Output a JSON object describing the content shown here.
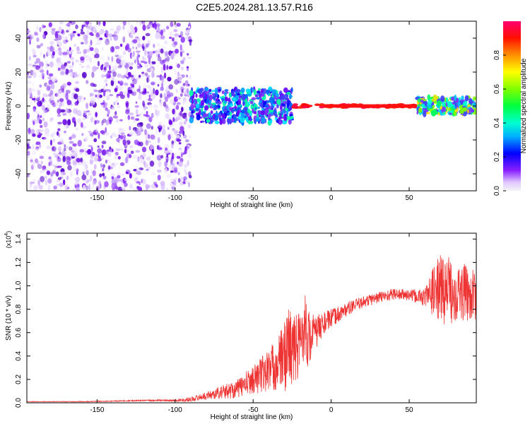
{
  "figure_title": "C2E5.2024.281.13.57.R16",
  "chart_data": [
    {
      "type": "heatmap",
      "title": "",
      "xlabel": "Height of straight line (km)",
      "ylabel": "Frequency (Hz)",
      "xlim": [
        -195,
        93
      ],
      "ylim": [
        -50,
        50
      ],
      "xticks": [
        -150,
        -100,
        -50,
        0,
        50
      ],
      "yticks": [
        -40,
        -20,
        0,
        20,
        40
      ],
      "grid": false,
      "colorbar": {
        "label": "Normalized spectral amplitude",
        "range": [
          0,
          1
        ],
        "ticks": [
          0.0,
          0.2,
          0.4,
          0.6,
          0.8
        ],
        "colors": [
          "#f2f2f2",
          "#e0c8ff",
          "#7a00ff",
          "#0000ff",
          "#00c8ff",
          "#00ff80",
          "#80ff00",
          "#ffff00",
          "#ff8000",
          "#ff0000",
          "#ff0078"
        ]
      },
      "regions": [
        {
          "x": [
            -195,
            -90
          ],
          "freq_band": [
            -50,
            50
          ],
          "amplitude": 0.1,
          "description_color": "#6a00ff"
        },
        {
          "x": [
            -90,
            -25
          ],
          "freq_band": [
            -10,
            10
          ],
          "amplitude": 0.3,
          "description_color": "#00c8ff"
        },
        {
          "x": [
            -25,
            55
          ],
          "freq_band": [
            -1,
            1
          ],
          "amplitude": 1.0,
          "description_color": "#ff0000"
        },
        {
          "x": [
            55,
            93
          ],
          "freq_band": [
            -5,
            5
          ],
          "amplitude": 0.6,
          "description_color": "#80ff00"
        }
      ]
    },
    {
      "type": "line",
      "title": "",
      "xlabel": "Height of straight line (km)",
      "ylabel": "SNR (10 * v/v)",
      "yscale_label": "(x10",
      "yscale_exp": "4",
      "yscale_close": ")",
      "xlim": [
        -195,
        93
      ],
      "ylim": [
        0,
        1.45
      ],
      "xticks": [
        -150,
        -100,
        -50,
        0,
        50
      ],
      "yticks": [
        0.0,
        0.2,
        0.4,
        0.6,
        0.8,
        1.0,
        1.2,
        1.4
      ],
      "grid": false,
      "color": "#ee3333",
      "series": [
        {
          "x": [
            -195,
            -180,
            -160,
            -140,
            -120,
            -100,
            -90,
            -80,
            -70,
            -60,
            -50,
            -40,
            -35,
            -30,
            -27,
            -25,
            -20,
            -17,
            -15,
            -10,
            -5,
            0,
            10,
            20,
            30,
            40,
            50,
            55,
            60,
            65,
            70,
            75,
            80,
            85,
            90,
            93
          ],
          "values": [
            0.01,
            0.01,
            0.01,
            0.015,
            0.02,
            0.02,
            0.03,
            0.06,
            0.09,
            0.12,
            0.2,
            0.28,
            0.32,
            0.4,
            0.5,
            0.45,
            0.5,
            0.7,
            0.55,
            0.6,
            0.68,
            0.72,
            0.8,
            0.86,
            0.9,
            0.93,
            0.92,
            0.91,
            0.9,
            0.95,
            0.98,
            0.96,
            0.95,
            0.94,
            0.93,
            0.9
          ],
          "noise": [
            0.002,
            0.002,
            0.003,
            0.004,
            0.005,
            0.01,
            0.02,
            0.03,
            0.06,
            0.08,
            0.12,
            0.2,
            0.22,
            0.3,
            0.4,
            0.3,
            0.3,
            0.3,
            0.25,
            0.15,
            0.1,
            0.08,
            0.06,
            0.05,
            0.05,
            0.05,
            0.05,
            0.06,
            0.08,
            0.2,
            0.3,
            0.3,
            0.25,
            0.25,
            0.22,
            0.2
          ]
        }
      ]
    }
  ]
}
